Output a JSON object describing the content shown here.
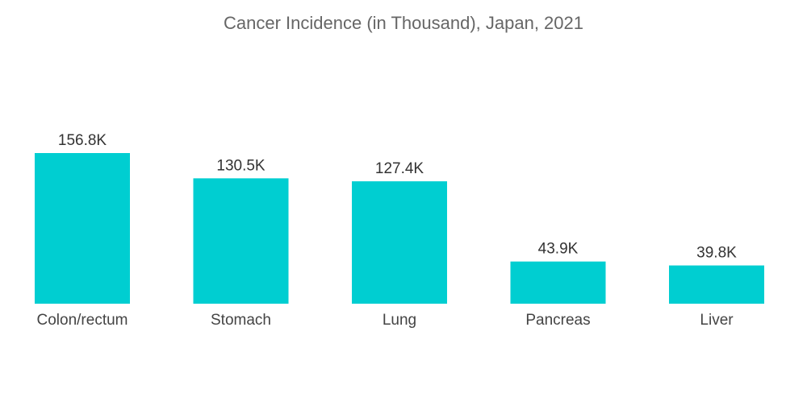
{
  "chart_data": {
    "type": "bar",
    "title": "Cancer Incidence (in Thousand), Japan, 2021",
    "xlabel": "",
    "ylabel": "",
    "categories": [
      "Colon/rectum",
      "Stomach",
      "Lung",
      "Pancreas",
      "Liver"
    ],
    "values": [
      156.8,
      130.5,
      127.4,
      43.9,
      39.8
    ],
    "data_labels": [
      "156.8K",
      "130.5K",
      "127.4K",
      "43.9K",
      "39.8K"
    ],
    "ylim": [
      0,
      156.8
    ],
    "grid": false,
    "legend": "none",
    "bar_color": "#00CED1"
  }
}
